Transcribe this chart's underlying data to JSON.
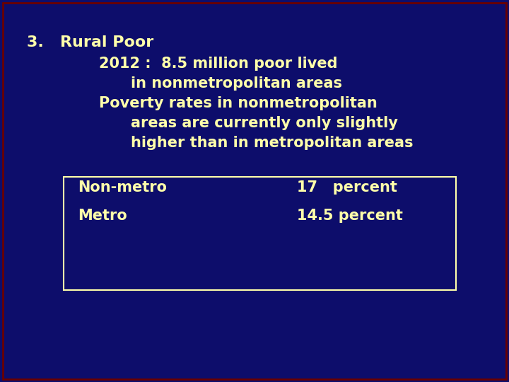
{
  "background_color": "#0d0d6b",
  "border_color": "#6b0000",
  "text_color": "#ffffaa",
  "box_border_color": "#ffffaa",
  "title_line": "3.   Rural Poor",
  "line2": "2012 :  8.5 million poor lived",
  "line3": "in nonmetropolitan areas",
  "line4": "Poverty rates in nonmetropolitan",
  "line5": "areas are currently only slightly",
  "line6": "higher than in metropolitan areas",
  "box_line1_left": "Non-metro",
  "box_line1_right": "17   percent",
  "box_line2_left": "Metro",
  "box_line2_right": "14.5 percent",
  "font_size_title": 16,
  "font_size_body": 15,
  "font_size_box": 15
}
